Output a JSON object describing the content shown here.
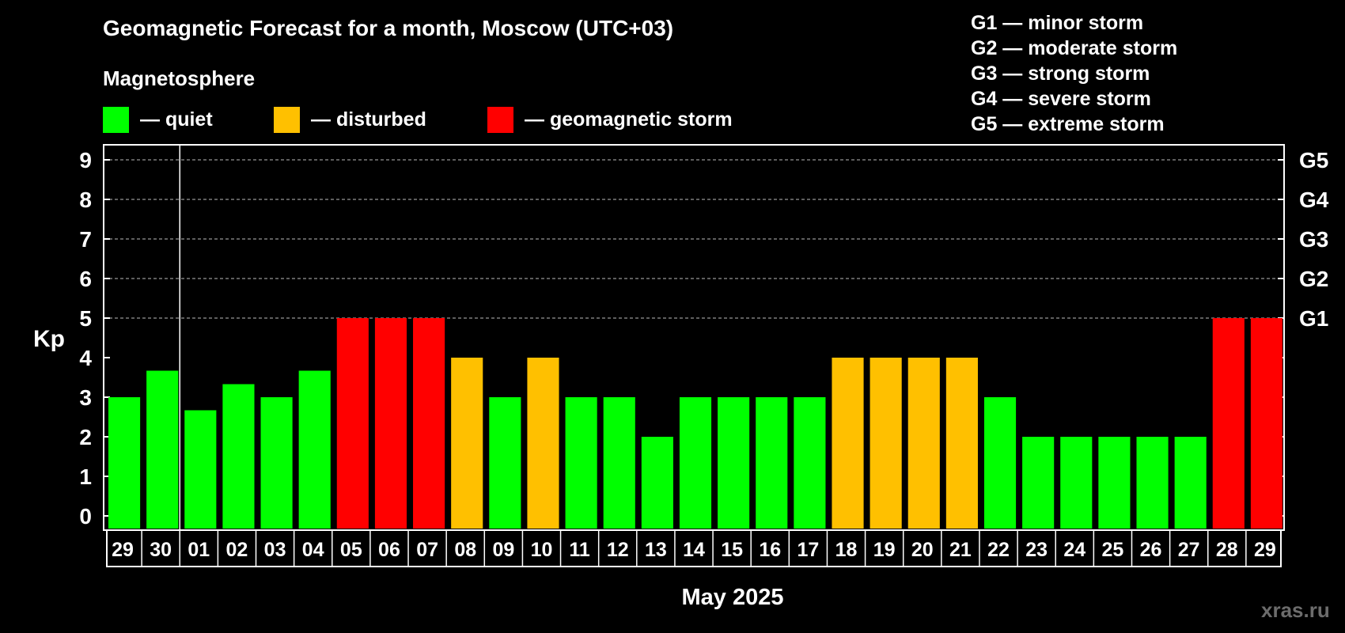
{
  "header": {
    "title": "Geomagnetic Forecast for a month, Moscow (UTC+03)",
    "section_label": "Magnetosphere",
    "watermark": "xras.ru"
  },
  "legend": [
    {
      "label": "— quiet",
      "color": "#00ff00"
    },
    {
      "label": "— disturbed",
      "color": "#ffc000"
    },
    {
      "label": "— geomagnetic storm",
      "color": "#ff0000"
    }
  ],
  "storm_scale": [
    {
      "code": "G1",
      "text": "G1 — minor storm"
    },
    {
      "code": "G2",
      "text": "G2 — moderate storm"
    },
    {
      "code": "G3",
      "text": "G3 — strong storm"
    },
    {
      "code": "G4",
      "text": "G4 — severe storm"
    },
    {
      "code": "G5",
      "text": "G5 — extreme storm"
    }
  ],
  "chart_data": {
    "type": "bar",
    "ylabel": "Kp",
    "xlabel": "May 2025",
    "ylim": [
      0,
      9
    ],
    "yticks": [
      0,
      1,
      2,
      3,
      4,
      5,
      6,
      7,
      8,
      9
    ],
    "right_axis_labels": [
      {
        "value": 5,
        "label": "G1"
      },
      {
        "value": 6,
        "label": "G2"
      },
      {
        "value": 7,
        "label": "G3"
      },
      {
        "value": 8,
        "label": "G4"
      },
      {
        "value": 9,
        "label": "G5"
      }
    ],
    "grid": "dashed horizontal at Kp 5 to 9",
    "month_divider_after_index": 1,
    "categories": [
      "29",
      "30",
      "01",
      "02",
      "03",
      "04",
      "05",
      "06",
      "07",
      "08",
      "09",
      "10",
      "11",
      "12",
      "13",
      "14",
      "15",
      "16",
      "17",
      "18",
      "19",
      "20",
      "21",
      "22",
      "23",
      "24",
      "25",
      "26",
      "27",
      "28",
      "29"
    ],
    "values": [
      3,
      3.67,
      2.67,
      3.33,
      3,
      3.67,
      5,
      5,
      5,
      4,
      3,
      4,
      3,
      3,
      2,
      3,
      3,
      3,
      3,
      4,
      4,
      4,
      4,
      3,
      2,
      2,
      2,
      2,
      2,
      5,
      5
    ],
    "levels": [
      "quiet",
      "quiet",
      "quiet",
      "quiet",
      "quiet",
      "quiet",
      "storm",
      "storm",
      "storm",
      "disturbed",
      "quiet",
      "disturbed",
      "quiet",
      "quiet",
      "quiet",
      "quiet",
      "quiet",
      "quiet",
      "quiet",
      "disturbed",
      "disturbed",
      "disturbed",
      "disturbed",
      "quiet",
      "quiet",
      "quiet",
      "quiet",
      "quiet",
      "quiet",
      "storm",
      "storm"
    ],
    "level_colors": {
      "quiet": "#00ff00",
      "disturbed": "#ffc000",
      "storm": "#ff0000"
    }
  }
}
